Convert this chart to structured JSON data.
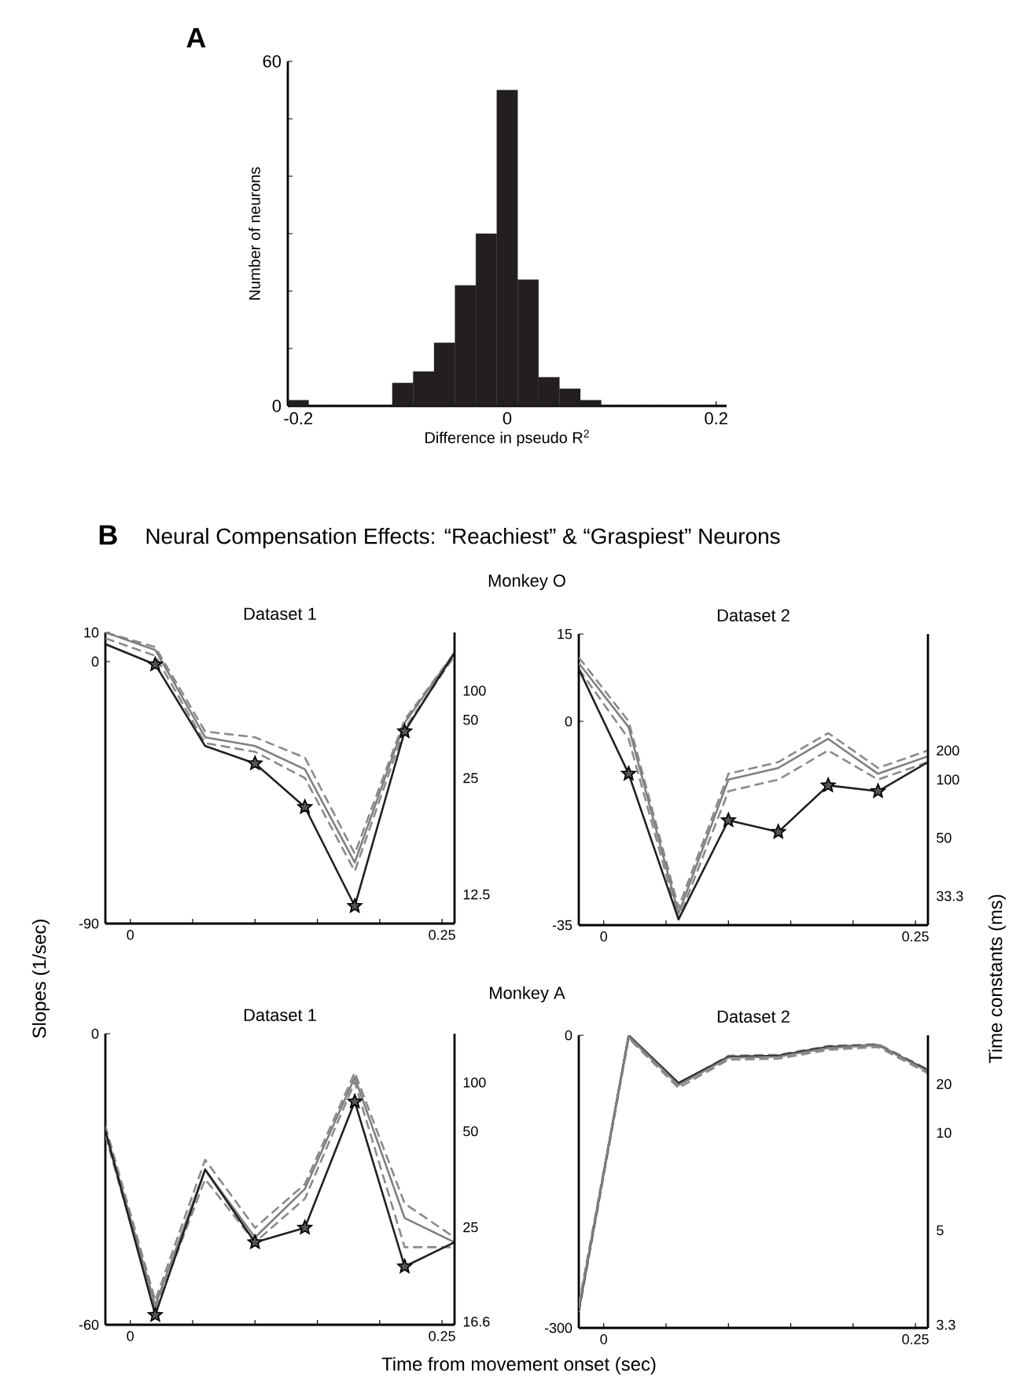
{
  "chart_data": [
    {
      "type": "histogram",
      "annotations": [
        "A"
      ],
      "xlabel": "Difference in pseudo R$^{2}$",
      "ylabel": "Number of neurons",
      "color": "#231f20",
      "bins": [
        -0.21,
        -0.19,
        -0.17,
        -0.15,
        -0.13,
        -0.11,
        -0.09,
        -0.07,
        -0.05,
        -0.03,
        -0.01,
        0.01,
        0.03,
        0.05,
        0.07,
        0.09,
        0.11,
        0.13,
        0.15,
        0.17,
        0.19,
        0.21
      ],
      "values": [
        1,
        0,
        0,
        0,
        0,
        4,
        6,
        11,
        21,
        30,
        55,
        22,
        5,
        3,
        1,
        0,
        0,
        0,
        0,
        0,
        0
      ],
      "xlim": [
        -0.21,
        0.21
      ],
      "xticks": [
        -0.2,
        0,
        0.2
      ],
      "ylim": [
        0,
        60
      ],
      "yticks": [
        0,
        {
          "value": 10,
          "label": null
        },
        {
          "value": 20,
          "label": null
        },
        {
          "value": 30,
          "label": null
        },
        {
          "value": 40,
          "label": null
        },
        {
          "value": 50,
          "label": null
        },
        60
      ]
    },
    {
      "type": "line",
      "title": "Dataset 1",
      "annotations": [
        "B",
        "Neural Compensation Effects: “Reachiest” & “Graspiest” Neurons",
        "Monkey O",
        "100",
        "50",
        "25",
        "12.5"
      ],
      "ylabel": "Slopes (1/sec)",
      "x": [
        -0.02,
        0.02,
        0.06,
        0.1,
        0.14,
        0.18,
        0.22,
        0.26
      ],
      "series": [
        {
          "color": "#8a8a8a",
          "line_style": "dashed",
          "values": [
            10,
            5,
            -24,
            -26,
            -33,
            -66,
            -20,
            3
          ]
        },
        {
          "color": "#8a8a8a",
          "line_style": "dashed",
          "values": [
            8,
            2,
            -28,
            -31,
            -40,
            -72,
            -23,
            2
          ]
        },
        {
          "color": "#808080",
          "values": [
            10,
            4,
            -26,
            -29,
            -37,
            -69,
            -21,
            3
          ]
        },
        {
          "color": "#231f20",
          "values": [
            6,
            -1,
            -29,
            -35,
            -50,
            -84,
            -24,
            3
          ]
        },
        {
          "type": "scatter",
          "marker": "star",
          "color": "#555555",
          "x": [
            0.02,
            0.1,
            0.14,
            0.18,
            0.22
          ],
          "values": [
            -1,
            -35,
            -50,
            -84,
            -24
          ]
        }
      ],
      "xlim": [
        -0.02,
        0.26
      ],
      "xticks": [
        0,
        {
          "value": 0.05,
          "label": null
        },
        {
          "value": 0.1,
          "label": null
        },
        {
          "value": 0.15,
          "label": null
        },
        {
          "value": 0.2,
          "label": null
        },
        0.25
      ],
      "ylim": [
        -90,
        10
      ],
      "yticks": [
        -90,
        0,
        10
      ]
    },
    {
      "type": "line",
      "title": "Dataset 2",
      "y2label": "Time constants (ms)",
      "annotations": [
        "200",
        "100",
        "50",
        "33.3"
      ],
      "x": [
        -0.02,
        0.02,
        0.06,
        0.1,
        0.14,
        0.18,
        0.22,
        0.26
      ],
      "series": [
        {
          "color": "#8a8a8a",
          "line_style": "dashed",
          "values": [
            11,
            0,
            -32,
            -9,
            -7,
            -2,
            -8,
            -5
          ]
        },
        {
          "color": "#8a8a8a",
          "line_style": "dashed",
          "values": [
            9,
            -3,
            -34,
            -12,
            -10,
            -5,
            -10,
            -7
          ]
        },
        {
          "color": "#808080",
          "values": [
            10,
            -1,
            -33,
            -10,
            -8,
            -3,
            -9,
            -6
          ]
        },
        {
          "color": "#231f20",
          "values": [
            9,
            -9,
            -34,
            -17,
            -19,
            -11,
            -12,
            -7
          ]
        },
        {
          "type": "scatter",
          "marker": "star",
          "color": "#555555",
          "x": [
            0.02,
            0.1,
            0.14,
            0.18,
            0.22
          ],
          "values": [
            -9,
            -17,
            -19,
            -11,
            -12
          ]
        }
      ],
      "xlim": [
        -0.02,
        0.26
      ],
      "xticks": [
        0,
        {
          "value": 0.05,
          "label": null
        },
        {
          "value": 0.1,
          "label": null
        },
        {
          "value": 0.15,
          "label": null
        },
        {
          "value": 0.2,
          "label": null
        },
        0.25
      ],
      "ylim": [
        -35,
        15
      ],
      "yticks": [
        -35,
        0,
        15
      ]
    },
    {
      "type": "line",
      "title": "Dataset 1",
      "annotations": [
        "Monkey A",
        "100",
        "50",
        "25",
        "16.6"
      ],
      "xlabel": "Time from movement onset (sec)",
      "x": [
        -0.02,
        0.02,
        0.06,
        0.1,
        0.14,
        0.18,
        0.22,
        0.26
      ],
      "series": [
        {
          "color": "#8a8a8a",
          "line_style": "dashed",
          "values": [
            -19,
            -55,
            -26,
            -40,
            -31,
            -8,
            -35,
            -42
          ]
        },
        {
          "color": "#8a8a8a",
          "line_style": "dashed",
          "values": [
            -21,
            -57,
            -30,
            -43,
            -34,
            -10,
            -44,
            -44
          ]
        },
        {
          "color": "#808080",
          "values": [
            -20,
            -56,
            -28,
            -42,
            -32,
            -9,
            -38,
            -43
          ]
        },
        {
          "color": "#231f20",
          "values": [
            -20,
            -58,
            -28,
            -43,
            -40,
            -14,
            -48,
            -43
          ]
        },
        {
          "type": "scatter",
          "marker": "star",
          "color": "#555555",
          "x": [
            0.02,
            0.1,
            0.14,
            0.18,
            0.22
          ],
          "values": [
            -58,
            -43,
            -40,
            -14,
            -48
          ]
        }
      ],
      "xlim": [
        -0.02,
        0.26
      ],
      "xticks": [
        0,
        {
          "value": 0.05,
          "label": null
        },
        {
          "value": 0.1,
          "label": null
        },
        {
          "value": 0.15,
          "label": null
        },
        {
          "value": 0.2,
          "label": null
        },
        0.25
      ],
      "ylim": [
        -60,
        0
      ],
      "yticks": [
        -60,
        0
      ]
    },
    {
      "type": "line",
      "title": "Dataset 2",
      "annotations": [
        "20",
        "10",
        "5",
        "3.3"
      ],
      "x": [
        -0.02,
        0.02,
        0.06,
        0.1,
        0.14,
        0.18,
        0.22,
        0.26
      ],
      "series": [
        {
          "color": "#8a8a8a",
          "line_style": "dashed",
          "values": [
            -276,
            -2,
            -50,
            -21,
            -20,
            -11,
            -9,
            -35
          ]
        },
        {
          "color": "#8a8a8a",
          "line_style": "dashed",
          "values": [
            -284,
            -3,
            -54,
            -25,
            -24,
            -15,
            -12,
            -39
          ]
        },
        {
          "color": "#231f20",
          "values": [
            -282,
            0,
            -49,
            -22,
            -21,
            -12,
            -10,
            -36
          ]
        },
        {
          "color": "#808080",
          "values": [
            -280,
            -1,
            -51,
            -23,
            -22,
            -13,
            -10,
            -37
          ]
        }
      ],
      "xlim": [
        -0.02,
        0.26
      ],
      "xticks": [
        0,
        {
          "value": 0.05,
          "label": null
        },
        {
          "value": 0.1,
          "label": null
        },
        {
          "value": 0.15,
          "label": null
        },
        {
          "value": 0.2,
          "label": null
        },
        0.25
      ],
      "ylim": [
        -300,
        0
      ],
      "yticks": [
        -300,
        0
      ]
    }
  ]
}
